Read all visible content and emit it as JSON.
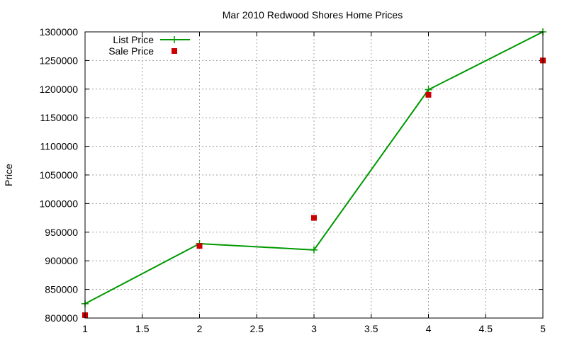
{
  "chart_data": {
    "type": "line",
    "title": "Mar 2010 Redwood Shores Home Prices",
    "xlabel": "",
    "ylabel": "Price",
    "xlim": [
      1,
      5
    ],
    "ylim": [
      800000,
      1300000
    ],
    "x_ticks": [
      "1",
      "1.5",
      "2",
      "2.5",
      "3",
      "3.5",
      "4",
      "4.5",
      "5"
    ],
    "y_ticks": [
      "800000",
      "850000",
      "900000",
      "950000",
      "1000000",
      "1050000",
      "1100000",
      "1150000",
      "1200000",
      "1250000",
      "1300000"
    ],
    "grid": true,
    "legend_position": "top-left",
    "series": [
      {
        "name": "List Price",
        "style": "lines+points",
        "color": "#009900",
        "x": [
          1,
          2,
          3,
          4,
          5
        ],
        "y": [
          825000,
          930000,
          919000,
          1199000,
          1300000
        ]
      },
      {
        "name": "Sale Price",
        "style": "points",
        "color": "#cc0000",
        "x": [
          1,
          2,
          3,
          4,
          5
        ],
        "y": [
          805000,
          926000,
          975000,
          1190000,
          1250000
        ]
      }
    ]
  }
}
